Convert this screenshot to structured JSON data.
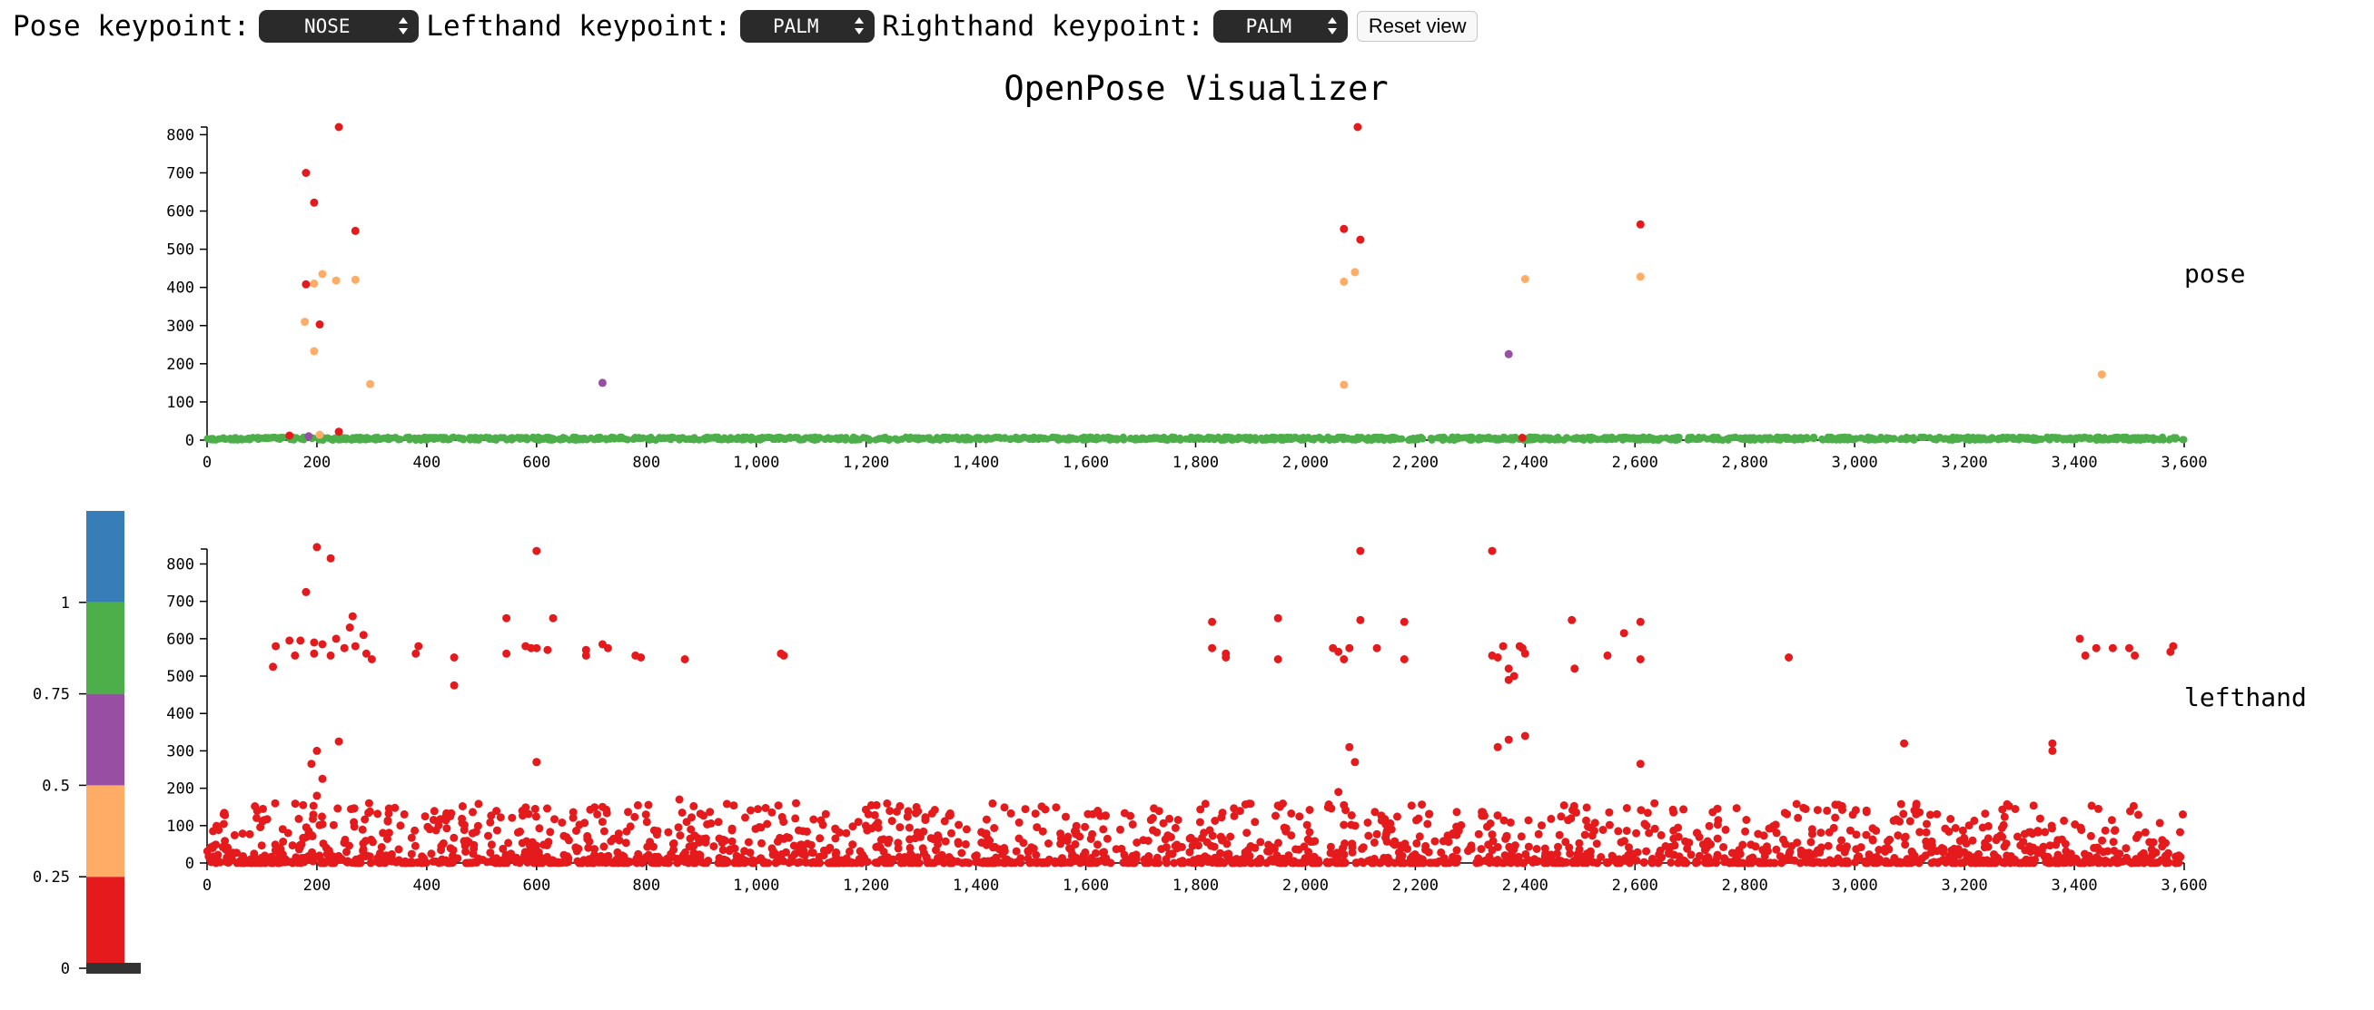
{
  "controls": {
    "pose_label": "Pose keypoint:",
    "pose_value": "NOSE",
    "lefthand_label": "Lefthand keypoint:",
    "lefthand_value": "PALM",
    "righthand_label": "Righthand keypoint:",
    "righthand_value": "PALM",
    "reset_label": "Reset view"
  },
  "title": "OpenPose Visualizer",
  "colors": {
    "red": "#e41a1c",
    "blue": "#377eb8",
    "green": "#4daf4a",
    "purple": "#984ea3",
    "orange": "#ffad66"
  },
  "legend": {
    "ticks": [
      "0",
      "0.25",
      "0.5",
      "0.75",
      "1"
    ],
    "bands": [
      {
        "from": 0,
        "to": 0.25,
        "color": "#e41a1c"
      },
      {
        "from": 0.25,
        "to": 0.5,
        "color": "#ffad66"
      },
      {
        "from": 0.5,
        "to": 0.75,
        "color": "#984ea3"
      },
      {
        "from": 0.75,
        "to": 1.0,
        "color": "#4daf4a"
      },
      {
        "from": 1.0,
        "to": 1.25,
        "color": "#377eb8"
      }
    ]
  },
  "chart_data": [
    {
      "type": "scatter",
      "label": "pose",
      "xlim": [
        0,
        3600
      ],
      "ylim": [
        0,
        820
      ],
      "x_ticks": [
        "0",
        "200",
        "400",
        "600",
        "800",
        "1,000",
        "1,200",
        "1,400",
        "1,600",
        "1,800",
        "2,000",
        "2,200",
        "2,400",
        "2,600",
        "2,800",
        "3,000",
        "3,200",
        "3,400",
        "3,600"
      ],
      "y_ticks": [
        "0",
        "100",
        "200",
        "300",
        "400",
        "500",
        "600",
        "700",
        "800"
      ],
      "baseline": {
        "color": "#4daf4a",
        "x_range": [
          0,
          3600
        ],
        "y_range": [
          0,
          8
        ]
      },
      "points": [
        {
          "x": 240,
          "y": 820,
          "c": "#e41a1c"
        },
        {
          "x": 180,
          "y": 700,
          "c": "#e41a1c"
        },
        {
          "x": 195,
          "y": 622,
          "c": "#e41a1c"
        },
        {
          "x": 270,
          "y": 548,
          "c": "#e41a1c"
        },
        {
          "x": 210,
          "y": 435,
          "c": "#ffad66"
        },
        {
          "x": 180,
          "y": 408,
          "c": "#e41a1c"
        },
        {
          "x": 195,
          "y": 410,
          "c": "#ffad66"
        },
        {
          "x": 235,
          "y": 418,
          "c": "#ffad66"
        },
        {
          "x": 270,
          "y": 420,
          "c": "#ffad66"
        },
        {
          "x": 178,
          "y": 310,
          "c": "#ffad66"
        },
        {
          "x": 205,
          "y": 303,
          "c": "#e41a1c"
        },
        {
          "x": 195,
          "y": 233,
          "c": "#ffad66"
        },
        {
          "x": 297,
          "y": 147,
          "c": "#ffad66"
        },
        {
          "x": 720,
          "y": 150,
          "c": "#984ea3"
        },
        {
          "x": 240,
          "y": 22,
          "c": "#e41a1c"
        },
        {
          "x": 150,
          "y": 12,
          "c": "#e41a1c"
        },
        {
          "x": 185,
          "y": 10,
          "c": "#984ea3"
        },
        {
          "x": 205,
          "y": 14,
          "c": "#ffad66"
        },
        {
          "x": 2095,
          "y": 820,
          "c": "#e41a1c"
        },
        {
          "x": 2070,
          "y": 553,
          "c": "#e41a1c"
        },
        {
          "x": 2100,
          "y": 525,
          "c": "#e41a1c"
        },
        {
          "x": 2090,
          "y": 440,
          "c": "#ffad66"
        },
        {
          "x": 2070,
          "y": 415,
          "c": "#ffad66"
        },
        {
          "x": 2070,
          "y": 145,
          "c": "#ffad66"
        },
        {
          "x": 2610,
          "y": 565,
          "c": "#e41a1c"
        },
        {
          "x": 2610,
          "y": 428,
          "c": "#ffad66"
        },
        {
          "x": 2400,
          "y": 422,
          "c": "#ffad66"
        },
        {
          "x": 2370,
          "y": 225,
          "c": "#984ea3"
        },
        {
          "x": 3450,
          "y": 172,
          "c": "#ffad66"
        },
        {
          "x": 2395,
          "y": 6,
          "c": "#e41a1c"
        }
      ]
    },
    {
      "type": "scatter",
      "label": "lefthand",
      "xlim": [
        0,
        3600
      ],
      "ylim": [
        0,
        840
      ],
      "x_ticks": [
        "0",
        "200",
        "400",
        "600",
        "800",
        "1,000",
        "1,200",
        "1,400",
        "1,600",
        "1,800",
        "2,000",
        "2,200",
        "2,400",
        "2,600",
        "2,800",
        "3,000",
        "3,200",
        "3,400",
        "3,600"
      ],
      "y_ticks": [
        "0",
        "100",
        "200",
        "300",
        "400",
        "500",
        "600",
        "700",
        "800"
      ],
      "default_color": "#e41a1c",
      "points": [
        [
          200,
          845
        ],
        [
          225,
          815
        ],
        [
          180,
          725
        ],
        [
          265,
          660
        ],
        [
          260,
          630
        ],
        [
          285,
          610
        ],
        [
          270,
          580
        ],
        [
          290,
          560
        ],
        [
          300,
          545
        ],
        [
          210,
          585
        ],
        [
          235,
          600
        ],
        [
          250,
          575
        ],
        [
          195,
          590
        ],
        [
          170,
          595
        ],
        [
          150,
          595
        ],
        [
          125,
          580
        ],
        [
          120,
          525
        ],
        [
          160,
          555
        ],
        [
          225,
          555
        ],
        [
          195,
          560
        ],
        [
          385,
          580
        ],
        [
          380,
          560
        ],
        [
          450,
          550
        ],
        [
          450,
          475
        ],
        [
          545,
          655
        ],
        [
          545,
          560
        ],
        [
          580,
          580
        ],
        [
          590,
          575
        ],
        [
          630,
          655
        ],
        [
          620,
          570
        ],
        [
          600,
          575
        ],
        [
          600,
          835
        ],
        [
          600,
          270
        ],
        [
          720,
          585
        ],
        [
          730,
          575
        ],
        [
          690,
          570
        ],
        [
          690,
          555
        ],
        [
          780,
          555
        ],
        [
          790,
          550
        ],
        [
          870,
          545
        ],
        [
          1050,
          555
        ],
        [
          1045,
          560
        ],
        [
          1830,
          645
        ],
        [
          1830,
          575
        ],
        [
          1855,
          560
        ],
        [
          1855,
          550
        ],
        [
          1950,
          655
        ],
        [
          1950,
          545
        ],
        [
          2050,
          575
        ],
        [
          2060,
          565
        ],
        [
          2070,
          545
        ],
        [
          2100,
          650
        ],
        [
          2100,
          835
        ],
        [
          2080,
          575
        ],
        [
          2130,
          575
        ],
        [
          2180,
          645
        ],
        [
          2180,
          545
        ],
        [
          2340,
          835
        ],
        [
          2340,
          555
        ],
        [
          2350,
          550
        ],
        [
          2360,
          580
        ],
        [
          2370,
          520
        ],
        [
          2380,
          500
        ],
        [
          2370,
          490
        ],
        [
          2400,
          560
        ],
        [
          2395,
          575
        ],
        [
          2390,
          580
        ],
        [
          2485,
          650
        ],
        [
          2490,
          520
        ],
        [
          2550,
          555
        ],
        [
          2580,
          615
        ],
        [
          2610,
          645
        ],
        [
          2610,
          545
        ],
        [
          2880,
          550
        ],
        [
          3410,
          600
        ],
        [
          3420,
          555
        ],
        [
          3440,
          575
        ],
        [
          3470,
          575
        ],
        [
          3500,
          575
        ],
        [
          3510,
          555
        ],
        [
          3580,
          580
        ],
        [
          3575,
          565
        ],
        [
          3090,
          320
        ],
        [
          3360,
          320
        ],
        [
          3360,
          300
        ],
        [
          2080,
          310
        ],
        [
          2090,
          270
        ],
        [
          2400,
          340
        ],
        [
          2370,
          330
        ],
        [
          2350,
          310
        ],
        [
          2610,
          265
        ],
        [
          200,
          300
        ],
        [
          190,
          265
        ],
        [
          210,
          225
        ],
        [
          240,
          325
        ],
        [
          295,
          160
        ],
        [
          600,
          270
        ],
        [
          175,
          155
        ],
        [
          200,
          180
        ],
        [
          720,
          150
        ],
        [
          860,
          170
        ],
        [
          2060,
          190
        ],
        [
          2070,
          155
        ]
      ],
      "noise": {
        "x_range": [
          0,
          3600
        ],
        "y_range": [
          0,
          160
        ],
        "count": 2200
      }
    }
  ]
}
